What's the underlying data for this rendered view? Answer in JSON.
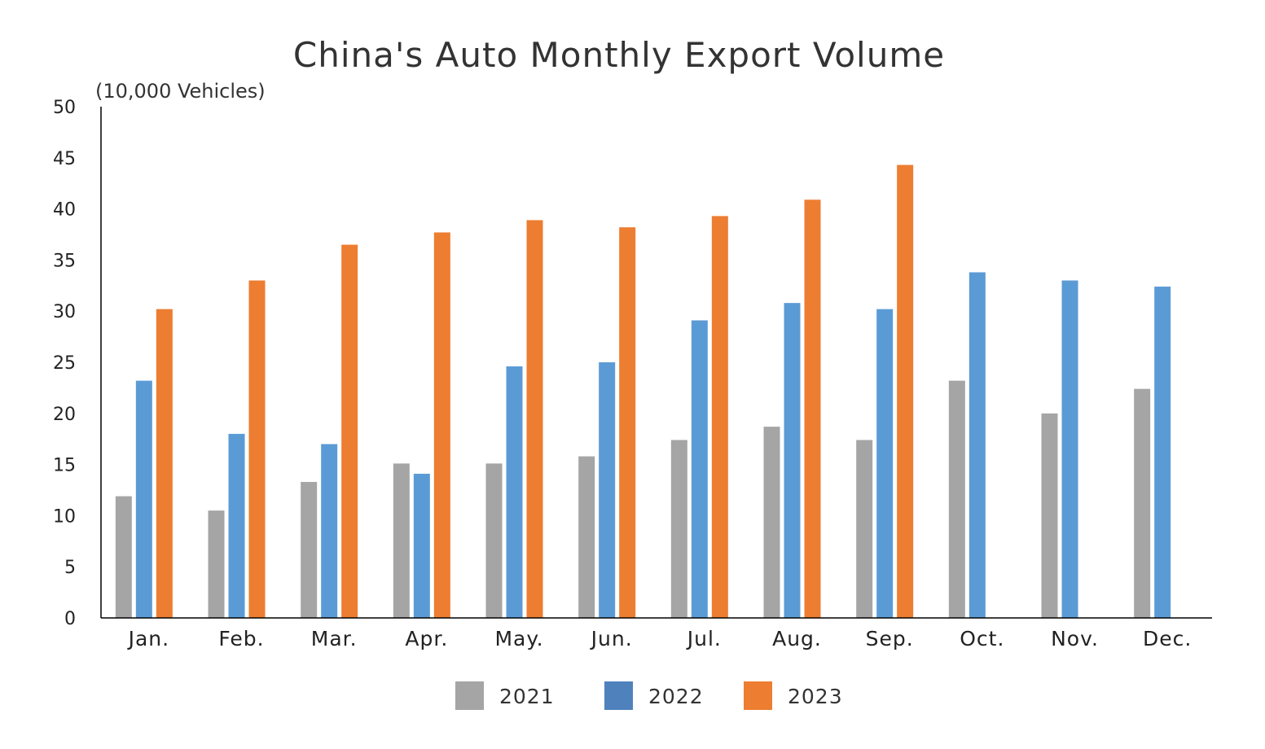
{
  "chart_data": {
    "type": "bar",
    "title": "China's Auto Monthly Export Volume",
    "ylabel": "(10,000 Vehicles)",
    "xlabel": "",
    "ylim": [
      0,
      50
    ],
    "yticks": [
      0,
      5,
      10,
      15,
      20,
      25,
      30,
      35,
      40,
      45,
      50
    ],
    "grid": false,
    "legend_position": "bottom",
    "categories": [
      "Jan.",
      "Feb.",
      "Mar.",
      "Apr.",
      "May.",
      "Jun.",
      "Jul.",
      "Aug.",
      "Sep.",
      "Oct.",
      "Nov.",
      "Dec."
    ],
    "series": [
      {
        "name": "2021",
        "color": "#a5a5a5",
        "legend_color": "#a5a5a5",
        "values": [
          11.9,
          10.5,
          13.3,
          15.1,
          15.1,
          15.8,
          17.4,
          18.7,
          17.4,
          23.2,
          20.0,
          22.4
        ]
      },
      {
        "name": "2022",
        "color": "#5b9bd5",
        "legend_color": "#4f81bd",
        "values": [
          23.2,
          18.0,
          17.0,
          14.1,
          24.6,
          25.0,
          29.1,
          30.8,
          30.2,
          33.8,
          33.0,
          32.4
        ]
      },
      {
        "name": "2023",
        "color": "#ed7d31",
        "legend_color": "#ed7d31",
        "values": [
          30.2,
          33.0,
          36.5,
          37.7,
          38.9,
          38.2,
          39.3,
          40.9,
          44.3,
          null,
          null,
          null
        ]
      }
    ]
  }
}
